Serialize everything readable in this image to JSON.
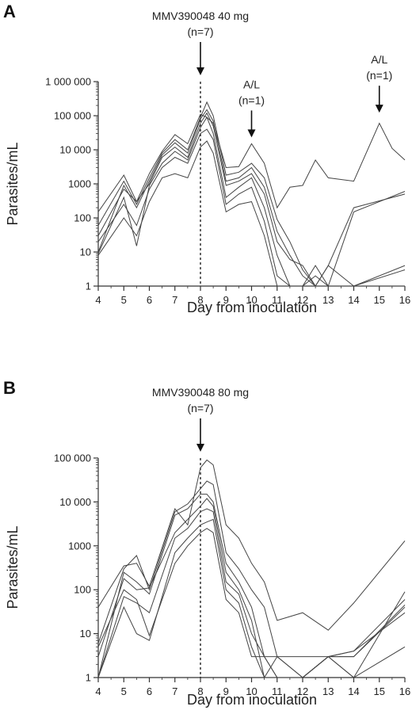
{
  "chart_data": [
    {
      "type": "line",
      "panel_label": "A",
      "xlabel": "Day from inoculation",
      "ylabel": "Parasites/mL",
      "xlim": [
        4,
        16
      ],
      "ylim": [
        1,
        1000000
      ],
      "y_scale": "log",
      "x_ticks": [
        "4",
        "5",
        "6",
        "7",
        "8",
        "9",
        "10",
        "11",
        "12",
        "13",
        "14",
        "15",
        "16"
      ],
      "y_ticks": [
        {
          "value": 1,
          "label": "1"
        },
        {
          "value": 10,
          "label": "10"
        },
        {
          "value": 100,
          "label": "100"
        },
        {
          "value": 1000,
          "label": "1000"
        },
        {
          "value": 10000,
          "label": "10 000"
        },
        {
          "value": 100000,
          "label": "100 000"
        },
        {
          "value": 1000000,
          "label": "1 000 000"
        }
      ],
      "grid": false,
      "vline_x": 8,
      "annotations": [
        {
          "lines": [
            "MMV390048 40 mg",
            "(n=7)"
          ],
          "arrow_x": 8,
          "arrow_y": 1000000
        },
        {
          "lines": [
            "A/L",
            "(n=1)"
          ],
          "arrow_x": 10,
          "arrow_y": 15000
        },
        {
          "lines": [
            "A/L",
            "(n=1)"
          ],
          "arrow_x": 15,
          "arrow_y": 80000
        }
      ],
      "series": [
        {
          "x": [
            4,
            5,
            5.5,
            6,
            6.5,
            7,
            7.5,
            8,
            8.25,
            8.5,
            9,
            9.5,
            10,
            10.5,
            11,
            11.5,
            12,
            12.5,
            13,
            14,
            15,
            15.5,
            16
          ],
          "values": [
            150,
            1800,
            300,
            2000,
            9000,
            28000,
            15000,
            110000,
            90000,
            60000,
            3000,
            3200,
            15000,
            4000,
            200,
            800,
            900,
            5000,
            1500,
            1200,
            60000,
            11000,
            5000
          ]
        },
        {
          "x": [
            4,
            5,
            5.5,
            6,
            6.5,
            7,
            7.5,
            8,
            8.25,
            8.5,
            9,
            9.5,
            10,
            10.5,
            11,
            11.5,
            12,
            12.5,
            13,
            14,
            16
          ],
          "values": [
            60,
            1200,
            250,
            1500,
            8000,
            20000,
            10000,
            90000,
            250000,
            100000,
            1800,
            2200,
            4000,
            1500,
            90,
            20,
            3,
            1,
            4,
            200,
            500
          ]
        },
        {
          "x": [
            4,
            5,
            5.5,
            6,
            6.5,
            7,
            7.5,
            8,
            8.25,
            8.5,
            9,
            9.5,
            10,
            10.5,
            11,
            11.5,
            12,
            12.5,
            13,
            14,
            16
          ],
          "values": [
            10,
            900,
            200,
            1200,
            7000,
            16000,
            8000,
            80000,
            150000,
            70000,
            1200,
            1500,
            3000,
            800,
            40,
            8,
            2,
            1,
            1,
            150,
            600
          ]
        },
        {
          "x": [
            4,
            5,
            5.5,
            6,
            6.5,
            7,
            7.5,
            8,
            8.25,
            8.5,
            9,
            9.5,
            10,
            10.5,
            11,
            11.5,
            12,
            12.5,
            13,
            14,
            16
          ],
          "values": [
            30,
            700,
            300,
            1000,
            6000,
            12000,
            6000,
            60000,
            120000,
            50000,
            900,
            1200,
            2000,
            500,
            20,
            6,
            4,
            1,
            1,
            1,
            1
          ]
        },
        {
          "x": [
            4,
            5,
            5.5,
            6,
            6.5,
            7,
            7.5,
            8,
            8.25,
            8.5,
            9,
            9.5,
            10,
            10.5,
            11,
            11.5,
            12,
            12.5,
            13,
            14,
            16
          ],
          "values": [
            9,
            400,
            15,
            900,
            4000,
            9000,
            5000,
            45000,
            90000,
            30000,
            400,
            800,
            1500,
            200,
            8,
            1,
            1,
            4,
            1,
            1,
            4
          ]
        },
        {
          "x": [
            4,
            5,
            5.5,
            6,
            6.5,
            7,
            7.5,
            8,
            8.25,
            8.5,
            9,
            9.5,
            10,
            10.5,
            11,
            11.5,
            12,
            12.5,
            13,
            14,
            16
          ],
          "values": [
            20,
            250,
            60,
            700,
            3000,
            6000,
            4000,
            30000,
            40000,
            20000,
            250,
            500,
            800,
            80,
            2,
            1,
            1,
            2,
            1,
            1,
            3
          ]
        },
        {
          "x": [
            4,
            5,
            5.5,
            6,
            6.5,
            7,
            7.5,
            8,
            8.25,
            8.5,
            9,
            9.5,
            10,
            10.5,
            11,
            11.5,
            12,
            12.5,
            13,
            14,
            16
          ],
          "values": [
            8,
            100,
            30,
            300,
            1500,
            2000,
            1500,
            12000,
            18000,
            8000,
            150,
            250,
            300,
            30,
            1,
            1,
            1,
            1,
            4,
            1,
            1
          ]
        }
      ]
    },
    {
      "type": "line",
      "panel_label": "B",
      "xlabel": "Day from inoculation",
      "ylabel": "Parasites/mL",
      "xlim": [
        4,
        16
      ],
      "ylim": [
        1,
        100000
      ],
      "y_scale": "log",
      "x_ticks": [
        "4",
        "5",
        "6",
        "7",
        "8",
        "9",
        "10",
        "11",
        "12",
        "13",
        "14",
        "15",
        "16"
      ],
      "y_ticks": [
        {
          "value": 1,
          "label": "1"
        },
        {
          "value": 10,
          "label": "10"
        },
        {
          "value": 100,
          "label": "100"
        },
        {
          "value": 1000,
          "label": "1000"
        },
        {
          "value": 10000,
          "label": "10 000"
        },
        {
          "value": 100000,
          "label": "100 000"
        }
      ],
      "grid": false,
      "vline_x": 8,
      "annotations": [
        {
          "lines": [
            "MMV390048 80 mg",
            "(n=7)"
          ],
          "arrow_x": 8,
          "arrow_y": 100000
        }
      ],
      "series": [
        {
          "x": [
            4,
            5,
            5.5,
            6,
            7,
            7.5,
            8,
            8.25,
            8.5,
            9,
            9.5,
            10,
            10.5,
            11,
            12,
            13,
            14,
            16
          ],
          "values": [
            40,
            350,
            400,
            120,
            7000,
            3000,
            60000,
            90000,
            70000,
            3000,
            1500,
            400,
            150,
            20,
            30,
            12,
            50,
            1300
          ]
        },
        {
          "x": [
            4,
            5,
            5.5,
            6,
            7,
            7.5,
            8,
            8.25,
            8.5,
            9,
            9.5,
            10,
            10.5,
            11,
            12,
            13,
            14,
            16
          ],
          "values": [
            6,
            300,
            600,
            100,
            6000,
            9000,
            20000,
            30000,
            25000,
            700,
            300,
            100,
            40,
            3,
            3,
            3,
            4,
            60
          ]
        },
        {
          "x": [
            4,
            5,
            5.5,
            6,
            7,
            7.5,
            8,
            8.25,
            8.5,
            9,
            9.5,
            10,
            10.5,
            11,
            12,
            13,
            14,
            16
          ],
          "values": [
            1,
            250,
            150,
            80,
            5000,
            7000,
            15000,
            15000,
            10000,
            400,
            150,
            40,
            3,
            1,
            1,
            3,
            3,
            40
          ]
        },
        {
          "x": [
            4,
            5,
            5.5,
            6,
            7,
            7.5,
            8,
            8.25,
            8.5,
            9,
            9.5,
            10,
            10.5,
            11,
            12,
            13,
            14,
            16
          ],
          "values": [
            3,
            180,
            100,
            110,
            2000,
            4000,
            8000,
            12000,
            8000,
            250,
            100,
            20,
            1,
            3,
            1,
            3,
            1,
            90
          ]
        },
        {
          "x": [
            4,
            5,
            5.5,
            6,
            7,
            7.5,
            8,
            8.25,
            8.5,
            9,
            9.5,
            10,
            10.5,
            11,
            12,
            13,
            14,
            16
          ],
          "values": [
            1,
            70,
            50,
            30,
            1500,
            2500,
            6000,
            7000,
            6000,
            150,
            80,
            10,
            3,
            3,
            1,
            3,
            4,
            30
          ]
        },
        {
          "x": [
            4,
            5,
            5.5,
            6,
            7,
            7.5,
            8,
            8.25,
            8.5,
            9,
            9.5,
            10,
            10.5,
            11,
            12,
            13,
            14,
            16
          ],
          "values": [
            1,
            40,
            10,
            7,
            700,
            1500,
            3000,
            3500,
            4000,
            100,
            50,
            5,
            1,
            1,
            1,
            3,
            1,
            5
          ]
        },
        {
          "x": [
            4,
            5,
            5.5,
            6,
            7,
            7.5,
            8,
            8.25,
            8.5,
            9,
            9.5,
            10,
            10.5,
            11,
            12,
            13,
            14,
            16
          ],
          "values": [
            5,
            100,
            60,
            9,
            400,
            1000,
            2000,
            2500,
            2000,
            60,
            30,
            3,
            3,
            1,
            1,
            3,
            3,
            45
          ]
        }
      ]
    }
  ]
}
